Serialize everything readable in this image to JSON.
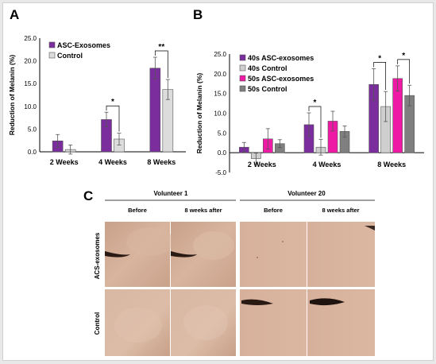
{
  "panels": {
    "a": "A",
    "b": "B",
    "c": "C"
  },
  "chart_data": [
    {
      "type": "bar",
      "panel": "A",
      "ylabel": "Reduction of Melanin (%)",
      "ylim": [
        0,
        25
      ],
      "yticks": [
        "0.0",
        "5.0",
        "10.0",
        "15.0",
        "20.0",
        "25.0"
      ],
      "categories": [
        "2 Weeks",
        "4 Weeks",
        "8 Weeks"
      ],
      "legend_position": "top-left",
      "series": [
        {
          "name": "ASC-Exosomes",
          "color": "#7b2d9e",
          "values": [
            2.4,
            7.1,
            18.4
          ],
          "errors": [
            1.4,
            1.6,
            2.4
          ]
        },
        {
          "name": "Control",
          "color": "#dcdcdc",
          "values": [
            0.5,
            2.8,
            13.7
          ],
          "errors": [
            1.0,
            1.3,
            2.2
          ]
        }
      ],
      "significance": [
        {
          "category": "4 Weeks",
          "label": "*"
        },
        {
          "category": "8 Weeks",
          "label": "**"
        }
      ]
    },
    {
      "type": "bar",
      "panel": "B",
      "ylabel": "Reduction of Melanin (%)",
      "ylim": [
        -5,
        25
      ],
      "yticks": [
        "-5.0",
        "0.0",
        "5.0",
        "10.0",
        "15.0",
        "20.0",
        "25.0"
      ],
      "categories": [
        "2 Weeks",
        "4 Weeks",
        "8 Weeks"
      ],
      "legend_position": "top-left",
      "series": [
        {
          "name": "40s ASC-exosomes",
          "color": "#7b2d9e",
          "values": [
            1.4,
            7.1,
            17.3
          ],
          "errors": [
            1.2,
            3.0,
            4.0
          ]
        },
        {
          "name": "40s Control",
          "color": "#cfcfcf",
          "values": [
            -1.5,
            1.4,
            11.7
          ],
          "errors": [
            1.4,
            2.0,
            3.8
          ]
        },
        {
          "name": "50s ASC-exosomes",
          "color": "#ee1aa6",
          "values": [
            3.5,
            8.0,
            18.8
          ],
          "errors": [
            2.6,
            2.5,
            3.2
          ]
        },
        {
          "name": "50s Control",
          "color": "#7f7f7f",
          "values": [
            2.3,
            5.4,
            14.5
          ],
          "errors": [
            1.0,
            1.4,
            2.6
          ]
        }
      ],
      "significance": [
        {
          "category": "4 Weeks",
          "label": "*"
        },
        {
          "category": "8 Weeks",
          "label": "*"
        },
        {
          "category": "8 Weeks",
          "label": "*"
        }
      ]
    }
  ],
  "photos": {
    "volunteers": [
      "Volunteer 1",
      "Volunteer 20"
    ],
    "columns": [
      "Before",
      "8 weeks after",
      "Before",
      "8 weeks after"
    ],
    "rows": [
      "ACS-exosomes",
      "Control"
    ],
    "colors": {
      "skin_light": "#d6b29b",
      "skin_mid": "#c99e86",
      "skin_dark": "#b9876f",
      "lash": "#2a1a14"
    }
  }
}
